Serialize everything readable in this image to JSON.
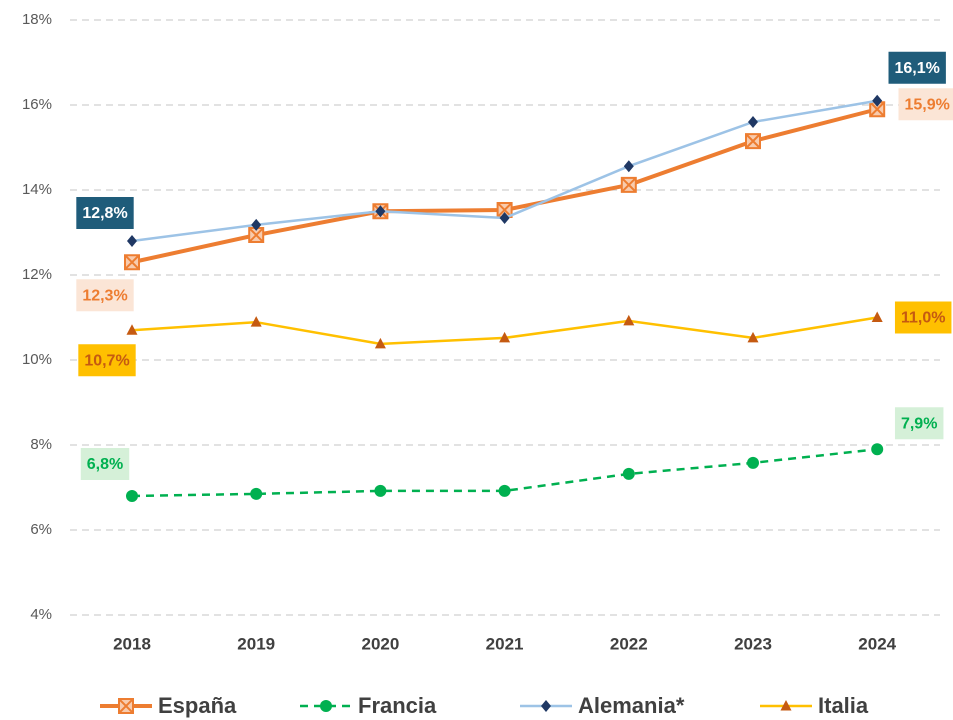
{
  "chart_data": {
    "type": "line",
    "categories": [
      "2018",
      "2019",
      "2020",
      "2021",
      "2022",
      "2023",
      "2024"
    ],
    "ylim": [
      4,
      18
    ],
    "yticks": [
      {
        "value": 4,
        "label": "4%"
      },
      {
        "value": 6,
        "label": "6%"
      },
      {
        "value": 8,
        "label": "8%"
      },
      {
        "value": 10,
        "label": "10%"
      },
      {
        "value": 12,
        "label": "12%"
      },
      {
        "value": 14,
        "label": "14%"
      },
      {
        "value": 16,
        "label": "16%"
      },
      {
        "value": 18,
        "label": "18%"
      }
    ],
    "grid": true,
    "legend": "bottom",
    "series": [
      {
        "name": "España",
        "color": "#ED7D31",
        "values": [
          12.3,
          12.94,
          13.5,
          13.53,
          14.12,
          15.15,
          15.9
        ],
        "value_labels": [
          "12,3%",
          null,
          null,
          null,
          null,
          null,
          "15,9%"
        ]
      },
      {
        "name": "Francia",
        "color": "#00B050",
        "values": [
          6.8,
          6.85,
          6.92,
          6.92,
          7.32,
          7.58,
          7.9
        ],
        "value_labels": [
          "6,8%",
          null,
          null,
          null,
          null,
          null,
          "7,9%"
        ]
      },
      {
        "name": "Alemania*",
        "color": "#9DC3E6",
        "values": [
          12.8,
          13.18,
          13.5,
          13.34,
          14.56,
          15.6,
          16.1
        ],
        "value_labels": [
          "12,8%",
          null,
          null,
          null,
          null,
          null,
          "16,1%"
        ]
      },
      {
        "name": "Italia",
        "color": "#FFC000",
        "values": [
          10.7,
          10.89,
          10.38,
          10.52,
          10.92,
          10.52,
          11.0
        ],
        "value_labels": [
          "10,7%",
          null,
          null,
          null,
          null,
          null,
          "11,0%"
        ]
      }
    ]
  }
}
